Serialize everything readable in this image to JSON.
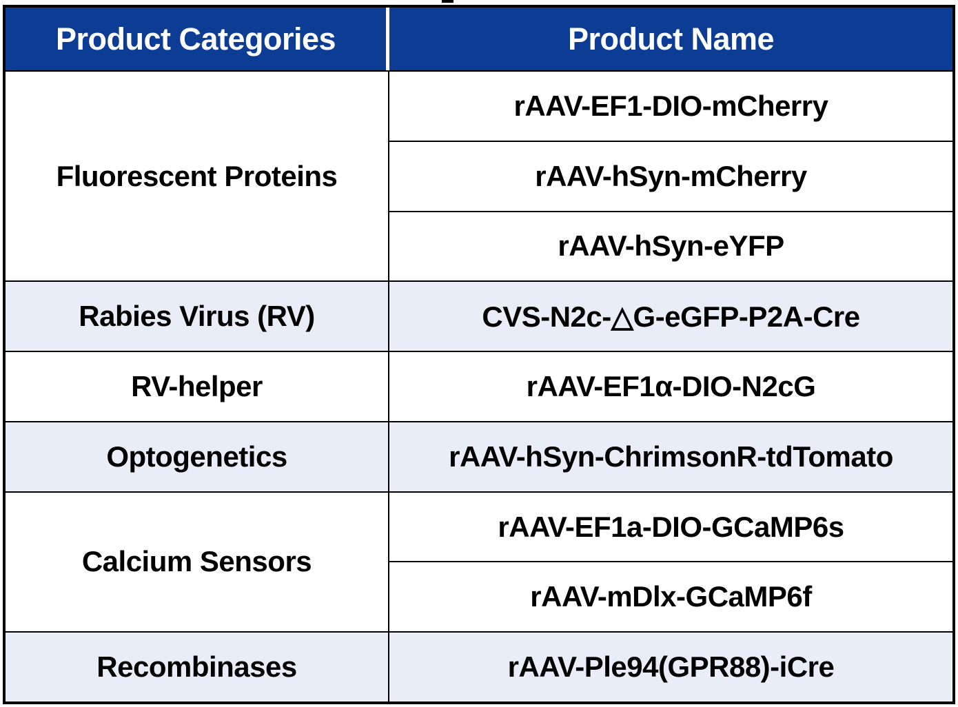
{
  "table": {
    "headers": [
      "Product Categories",
      "Product Name"
    ],
    "groups": [
      {
        "category": "Fluorescent Proteins",
        "products": [
          "rAAV-EF1-DIO-mCherry",
          "rAAV-hSyn-mCherry",
          "rAAV-hSyn-eYFP"
        ]
      },
      {
        "category": "Rabies Virus (RV)",
        "products": [
          "CVS-N2c-△G-eGFP-P2A-Cre"
        ]
      },
      {
        "category": "RV-helper",
        "products": [
          "rAAV-EF1α-DIO-N2cG"
        ]
      },
      {
        "category": "Optogenetics",
        "products": [
          "rAAV-hSyn-ChrimsonR-tdTomato"
        ]
      },
      {
        "category": "Calcium Sensors",
        "products": [
          "rAAV-EF1a-DIO-GCaMP6s",
          "rAAV-mDlx-GCaMP6f"
        ]
      },
      {
        "category": "Recombinases",
        "products": [
          "rAAV-Ple94(GPR88)-iCre"
        ]
      }
    ],
    "colors": {
      "header_bg": "#0C3C94",
      "header_text": "#FFFFFF",
      "row_bg": "#FFFFFF",
      "row_alt_bg": "#E9EDF8",
      "border": "#000000",
      "body_text": "#000000"
    }
  }
}
